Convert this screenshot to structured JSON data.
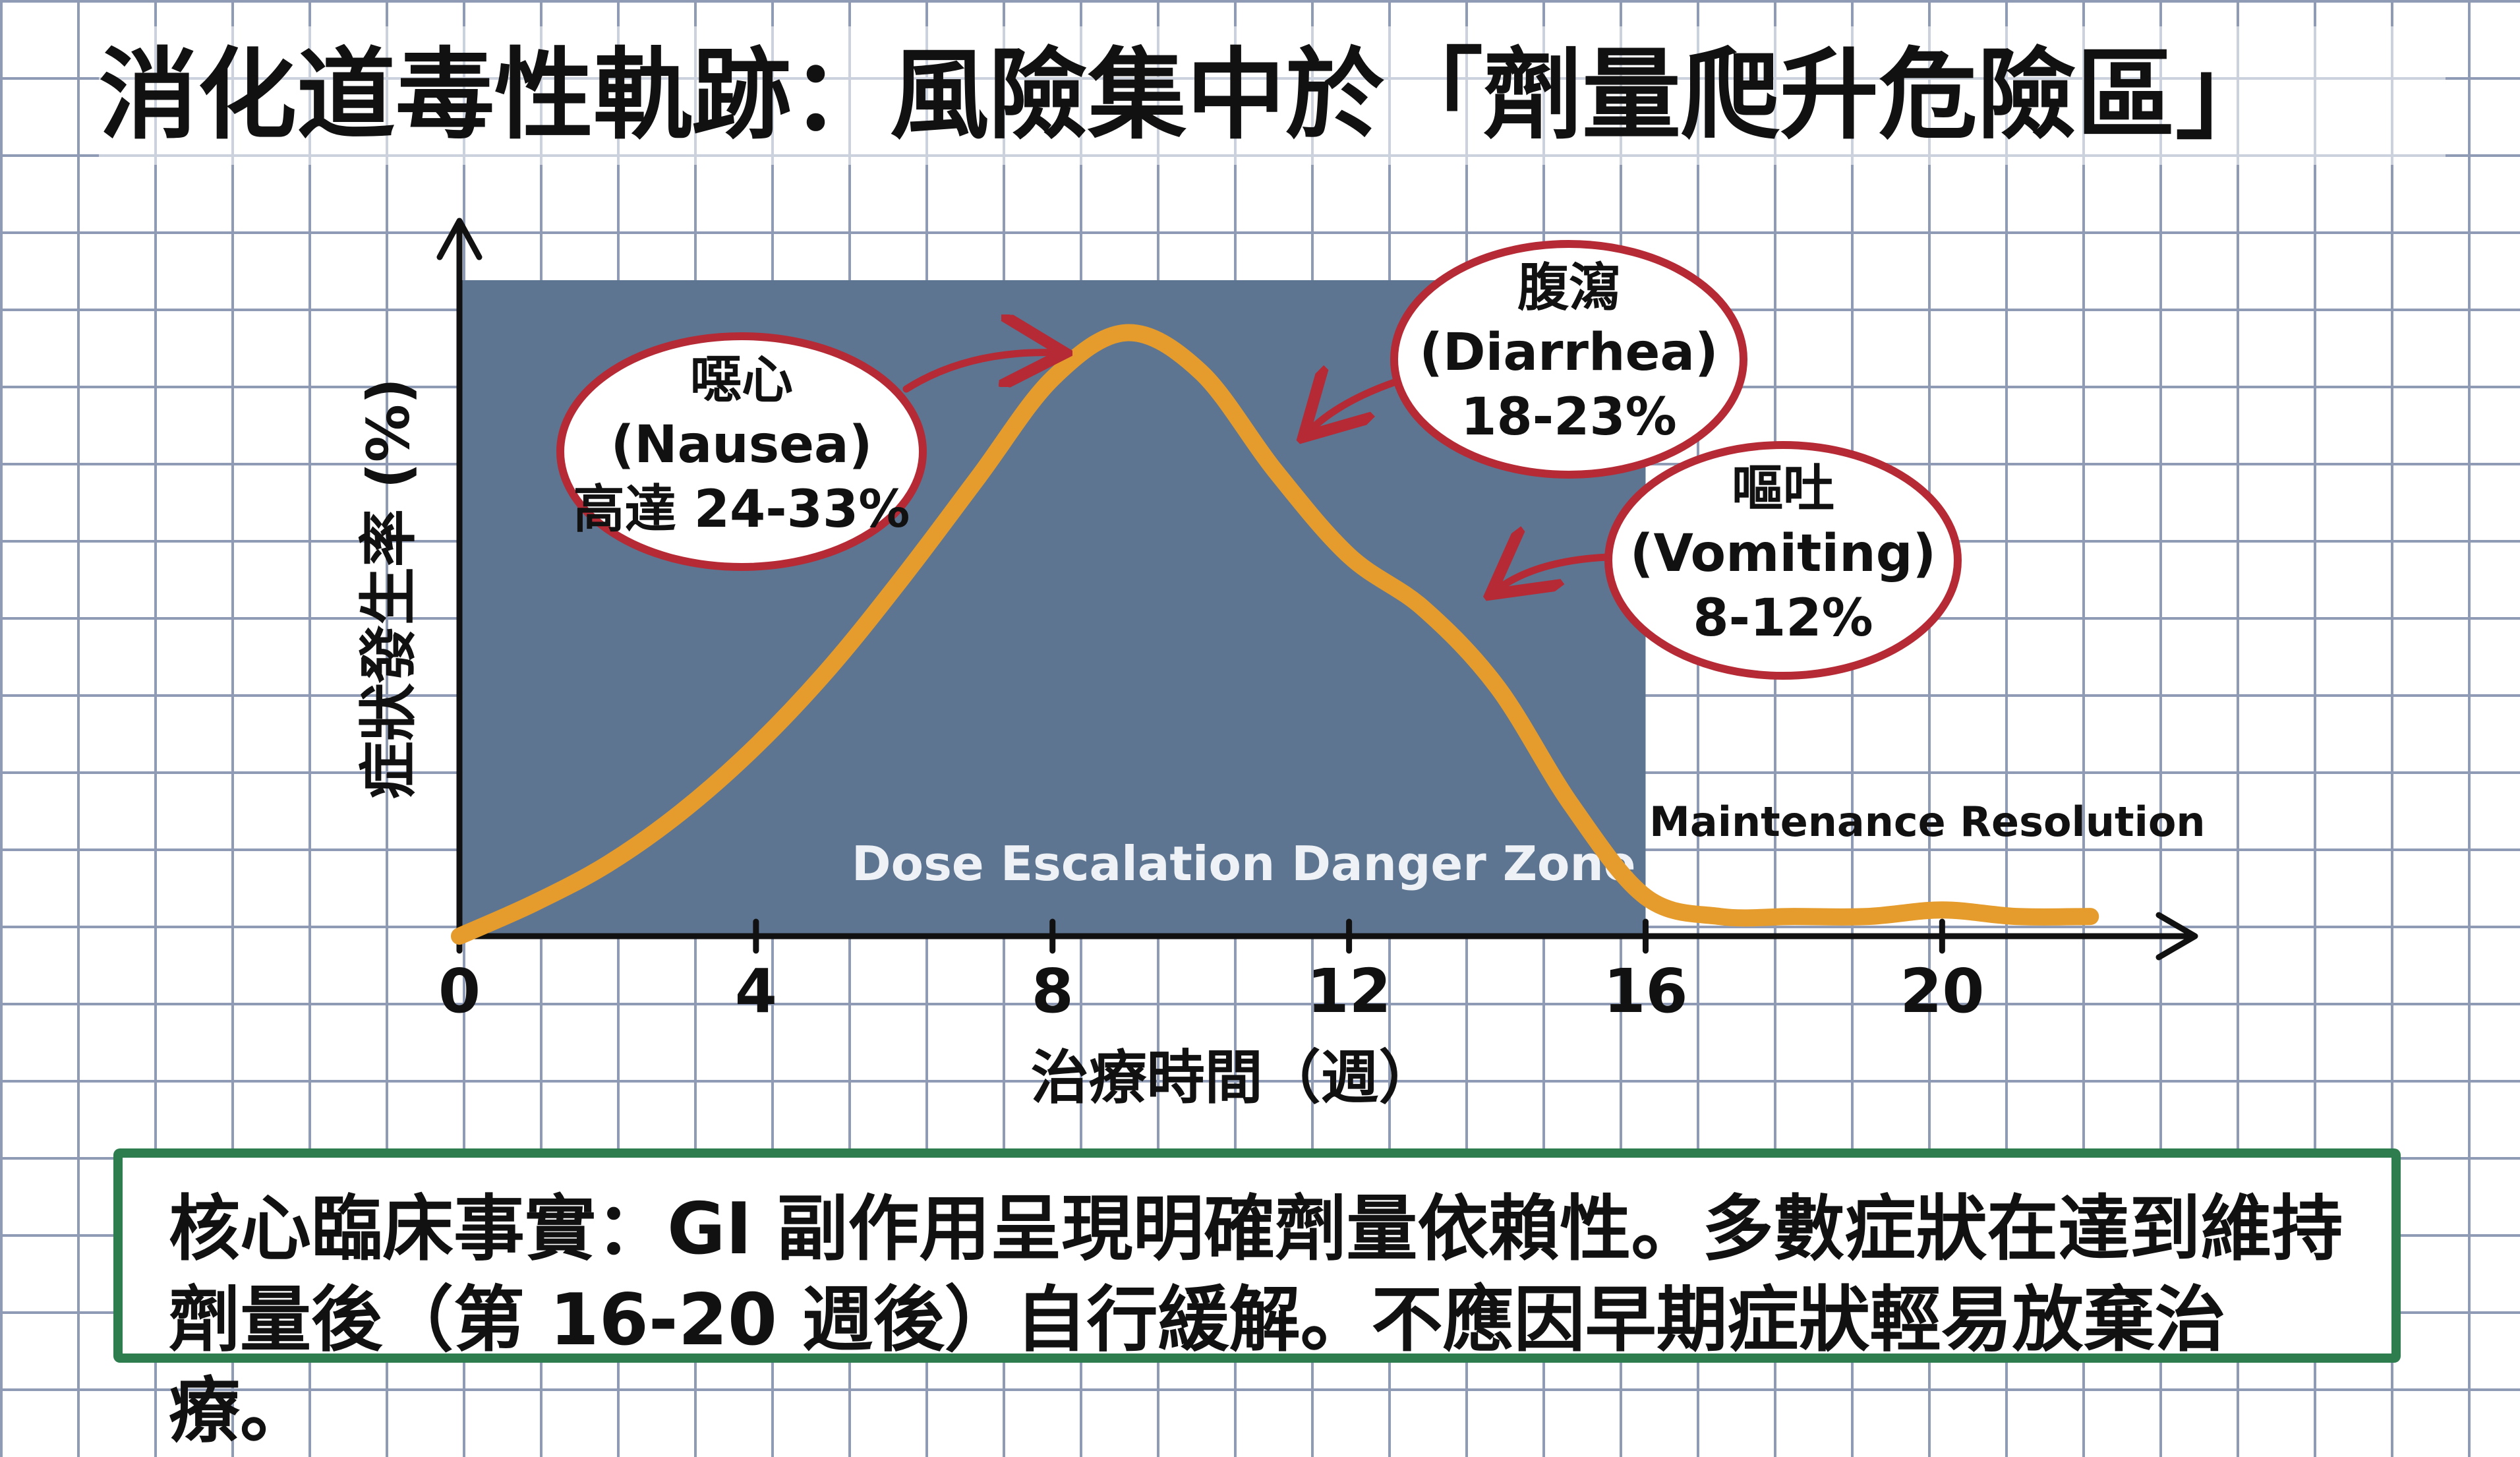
{
  "title": "消化道毒性軌跡：風險集中於「劑量爬升危險區」",
  "chart_data": {
    "type": "line",
    "xlabel": "治療時間（週）",
    "ylabel": "症狀發生率 (%)",
    "x_ticks": [
      0,
      4,
      8,
      12,
      16,
      20
    ],
    "xlim": [
      0,
      22.7
    ],
    "ylim": [
      0,
      100
    ],
    "series": [
      {
        "points": [
          [
            0,
            0
          ],
          [
            1,
            5
          ],
          [
            2,
            11
          ],
          [
            3,
            19
          ],
          [
            4,
            29
          ],
          [
            5,
            41
          ],
          [
            6,
            55
          ],
          [
            7,
            70
          ],
          [
            8,
            85
          ],
          [
            9,
            92
          ],
          [
            10,
            86
          ],
          [
            11,
            71
          ],
          [
            12,
            58
          ],
          [
            13,
            50
          ],
          [
            14,
            38
          ],
          [
            15,
            20
          ],
          [
            16,
            6
          ],
          [
            17,
            3
          ],
          [
            18,
            3
          ],
          [
            19,
            3
          ],
          [
            20,
            4
          ],
          [
            21,
            3
          ],
          [
            22,
            3
          ]
        ]
      }
    ],
    "zones": [
      {
        "label": "Dose Escalation Danger Zone",
        "x_start": 0,
        "x_end": 16
      },
      {
        "label": "Maintenance Resolution",
        "x_start": 16,
        "x_end": 22
      }
    ],
    "annotations": [
      {
        "name": "nausea",
        "line1": "噁心",
        "line2": "(Nausea)",
        "line3": "高達 24-33%"
      },
      {
        "name": "diarrhea",
        "line1": "腹瀉",
        "line2": "(Diarrhea)",
        "line3": "18-23%"
      },
      {
        "name": "vomiting",
        "line1": "嘔吐",
        "line2": "(Vomiting)",
        "line3": "8-12%"
      }
    ]
  },
  "colors": {
    "zone": "#5d7590",
    "curve": "#e59c2c",
    "bubble_border": "#b52a35",
    "axis": "#111111"
  },
  "fact": {
    "line1": "核心臨床事實：GI 副作用呈現明確劑量依賴性。多數症狀在達到維持",
    "line2": "劑量後（第 16-20 週後）自行緩解。不應因早期症狀輕易放棄治療。"
  }
}
